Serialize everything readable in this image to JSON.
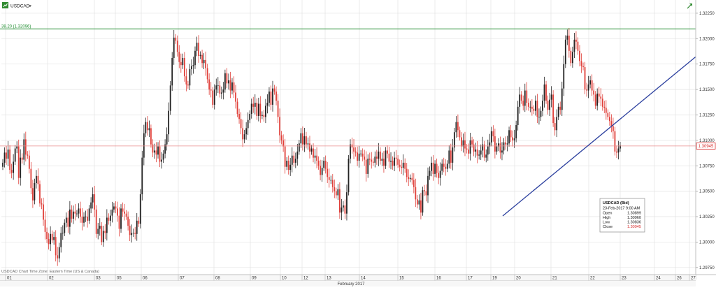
{
  "header": {
    "symbol": "USDCAD",
    "symbol_icon": "financial-instrument-icon",
    "dropdown_icon": "caret-down-icon",
    "expand_icon": "trend-arrow-icon"
  },
  "footer_note": "USDCAD Chart Time Zone: Eastern Time (US & Canada)",
  "colors": {
    "up": "#222222",
    "down": "#e0403a",
    "grid": "#e3e3e3",
    "reference": "#1e8c2e",
    "trendline": "#2b3f9e",
    "current_price": "#e98b8b",
    "axis_text": "#333333"
  },
  "chart_data": {
    "type": "candlestick",
    "symbol": "USDCAD",
    "timeframe_label": "February 2017",
    "ylim": [
      1.2968,
      1.3238
    ],
    "y_ticks": [
      "1.32250",
      "1.32000",
      "1.31750",
      "1.31500",
      "1.31250",
      "1.31000",
      "1.30750",
      "1.30500",
      "1.30250",
      "1.30000",
      "1.29750"
    ],
    "x_axis": {
      "labels": [
        "01",
        "02",
        "03",
        "05",
        "06",
        "07",
        "08",
        "09",
        "10",
        "12",
        "13",
        "14",
        "15",
        "16",
        "17",
        "19",
        "20",
        "21",
        "22",
        "23",
        "24",
        "26",
        "27"
      ],
      "month_label": "February 2017"
    },
    "reference_line": {
      "label": "38.20 (1.32096)",
      "value": 1.32096
    },
    "current_price": {
      "label": "1.30945",
      "value": 1.30945
    },
    "trendline": {
      "from": [
        15.5,
        1.30257
      ],
      "to": [
        27.4,
        1.31822
      ]
    },
    "infobox": {
      "title": "USDCAD (Bid)",
      "datetime": "23-Feb-2017 9:00 AM",
      "rows": [
        {
          "label": "Open",
          "value": "1.30899"
        },
        {
          "label": "High",
          "value": "1.30960"
        },
        {
          "label": "Low",
          "value": "1.30836"
        },
        {
          "label": "Close",
          "value": "1.30945"
        }
      ]
    },
    "closes": [
      1.3078,
      1.3088,
      1.3082,
      1.3091,
      1.3071,
      1.3068,
      1.3079,
      1.3092,
      1.3094,
      1.3063,
      1.3083,
      1.3081,
      1.3101,
      1.3086,
      1.3085,
      1.3072,
      1.3053,
      1.3041,
      1.3058,
      1.3065,
      1.3057,
      1.3038,
      1.3037,
      1.3022,
      1.301,
      1.3003,
      1.2998,
      1.3008,
      1.3002,
      1.3005,
      1.2987,
      1.2984,
      1.2995,
      1.3009,
      1.3009,
      1.3019,
      1.3024,
      1.3015,
      1.3032,
      1.3023,
      1.303,
      1.3028,
      1.3028,
      1.3033,
      1.3025,
      1.3019,
      1.3025,
      1.3025,
      1.3021,
      1.3033,
      1.3039,
      1.3047,
      1.3032,
      1.3008,
      1.3013,
      1.3016,
      1.3,
      1.3011,
      1.3009,
      1.3024,
      1.3021,
      1.3026,
      1.3032,
      1.3035,
      1.3033,
      1.3026,
      1.3013,
      1.3033,
      1.303,
      1.3028,
      1.3025,
      1.3016,
      1.3007,
      1.3009,
      1.3009,
      1.3008,
      1.3021,
      1.3018,
      1.3047,
      1.3083,
      1.3107,
      1.3118,
      1.311,
      1.3112,
      1.3096,
      1.3088,
      1.309,
      1.3086,
      1.3094,
      1.3079,
      1.3081,
      1.3087,
      1.3096,
      1.3106,
      1.3129,
      1.3154,
      1.3181,
      1.3201,
      1.3198,
      1.3187,
      1.3177,
      1.3174,
      1.3181,
      1.3163,
      1.3155,
      1.3154,
      1.317,
      1.3173,
      1.3174,
      1.3188,
      1.3196,
      1.3183,
      1.3184,
      1.3176,
      1.3179,
      1.3171,
      1.316,
      1.315,
      1.3149,
      1.3135,
      1.315,
      1.3154,
      1.3154,
      1.3146,
      1.3147,
      1.315,
      1.3166,
      1.3156,
      1.3159,
      1.3149,
      1.3157,
      1.3147,
      1.3138,
      1.3126,
      1.3121,
      1.3112,
      1.3101,
      1.3106,
      1.3112,
      1.312,
      1.3126,
      1.3136,
      1.3133,
      1.3137,
      1.3124,
      1.3136,
      1.3124,
      1.3125,
      1.3123,
      1.3134,
      1.3137,
      1.3148,
      1.3135,
      1.3151,
      1.3148,
      1.3139,
      1.3123,
      1.3105,
      1.31,
      1.3094,
      1.3074,
      1.308,
      1.3071,
      1.3076,
      1.3085,
      1.3078,
      1.3082,
      1.3089,
      1.3097,
      1.3107,
      1.3096,
      1.3104,
      1.3096,
      1.3097,
      1.3089,
      1.3092,
      1.3083,
      1.3085,
      1.308,
      1.3075,
      1.3066,
      1.3073,
      1.308,
      1.3072,
      1.3064,
      1.3061,
      1.3061,
      1.3054,
      1.305,
      1.3046,
      1.3052,
      1.3029,
      1.3034,
      1.3036,
      1.3028,
      1.3049,
      1.3082,
      1.3096,
      1.3093,
      1.3089,
      1.3088,
      1.308,
      1.3087,
      1.3087,
      1.3084,
      1.3081,
      1.3067,
      1.3082,
      1.3081,
      1.3079,
      1.3078,
      1.3084,
      1.3082,
      1.3089,
      1.308,
      1.3082,
      1.3075,
      1.309,
      1.3087,
      1.3079,
      1.308,
      1.3075,
      1.3083,
      1.3082,
      1.3076,
      1.3074,
      1.3073,
      1.3078,
      1.3072,
      1.3064,
      1.3062,
      1.3063,
      1.3061,
      1.3054,
      1.3042,
      1.3037,
      1.3041,
      1.3029,
      1.3051,
      1.305,
      1.3046,
      1.3065,
      1.307,
      1.3078,
      1.3067,
      1.3077,
      1.3068,
      1.3063,
      1.307,
      1.3077,
      1.3074,
      1.3072,
      1.3077,
      1.309,
      1.3078,
      1.3093,
      1.3108,
      1.3118,
      1.311,
      1.3103,
      1.3094,
      1.31,
      1.3092,
      1.3091,
      1.3087,
      1.31,
      1.3096,
      1.3089,
      1.3091,
      1.3085,
      1.3086,
      1.309,
      1.3096,
      1.3083,
      1.3086,
      1.3094,
      1.3098,
      1.3109,
      1.3104,
      1.3089,
      1.3094,
      1.3097,
      1.3088,
      1.309,
      1.3098,
      1.3096,
      1.3097,
      1.311,
      1.3103,
      1.31,
      1.3102,
      1.3115,
      1.3133,
      1.3145,
      1.3139,
      1.3134,
      1.3149,
      1.3137,
      1.3133,
      1.3133,
      1.3131,
      1.3129,
      1.3139,
      1.3123,
      1.3123,
      1.3129,
      1.3139,
      1.3155,
      1.3139,
      1.313,
      1.314,
      1.3145,
      1.3117,
      1.311,
      1.3123,
      1.3133,
      1.313,
      1.3151,
      1.3175,
      1.3199,
      1.3203,
      1.3188,
      1.3176,
      1.3187,
      1.3199,
      1.3197,
      1.3188,
      1.3178,
      1.3173,
      1.3172,
      1.315,
      1.3149,
      1.3155,
      1.3159,
      1.3149,
      1.3145,
      1.3134,
      1.3146,
      1.3143,
      1.3141,
      1.3133,
      1.3132,
      1.3127,
      1.3123,
      1.3119,
      1.3114,
      1.3109,
      1.3089,
      1.3088,
      1.3092,
      1.3095
    ]
  }
}
